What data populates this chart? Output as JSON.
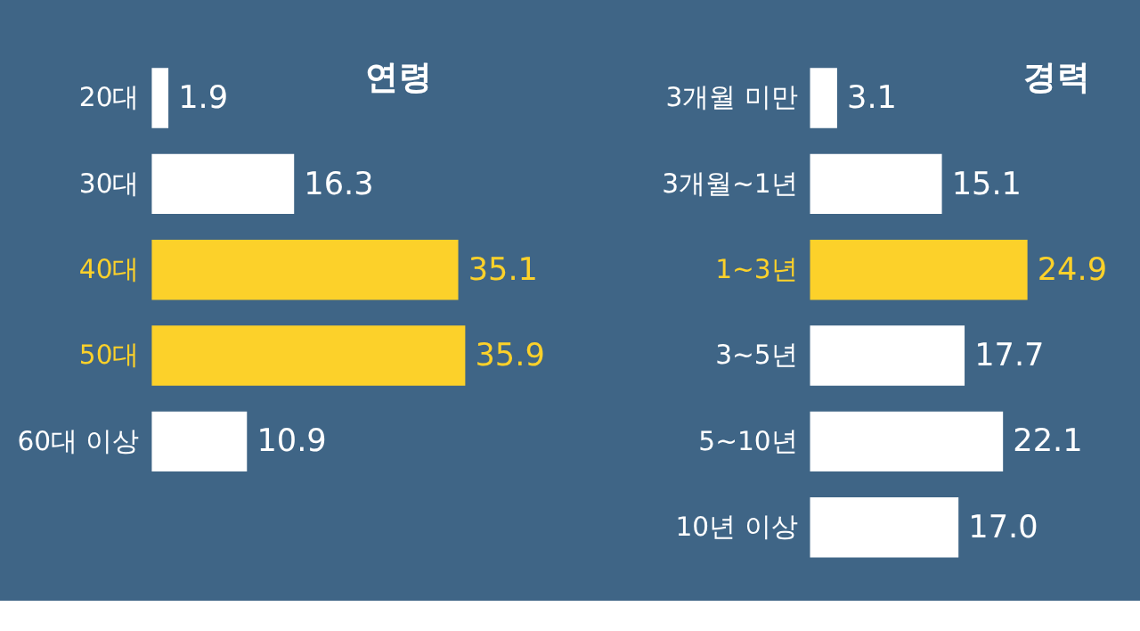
{
  "chart_data": [
    {
      "type": "bar",
      "orientation": "horizontal",
      "title": "연령",
      "categories": [
        "20대",
        "30대",
        "40대",
        "50대",
        "60대 이상"
      ],
      "values": [
        1.9,
        16.3,
        35.1,
        35.9,
        10.9
      ],
      "colors": [
        "#ffffff",
        "#ffffff",
        "#fcd12a",
        "#fcd12a",
        "#ffffff"
      ],
      "value_labels": [
        "1.9",
        "16.3",
        "35.1",
        "35.9",
        "10.9"
      ]
    },
    {
      "type": "bar",
      "orientation": "horizontal",
      "title": "경력",
      "categories": [
        "3개월 미만",
        "3개월~1년",
        "1~3년",
        "3~5년",
        "5~10년",
        "10년 이상"
      ],
      "values": [
        3.1,
        15.1,
        24.9,
        17.7,
        22.1,
        17.0
      ],
      "colors": [
        "#ffffff",
        "#ffffff",
        "#fcd12a",
        "#ffffff",
        "#ffffff",
        "#ffffff"
      ],
      "value_labels": [
        "3.1",
        "15.1",
        "24.9",
        "17.7",
        "22.1",
        "17.0"
      ]
    }
  ]
}
